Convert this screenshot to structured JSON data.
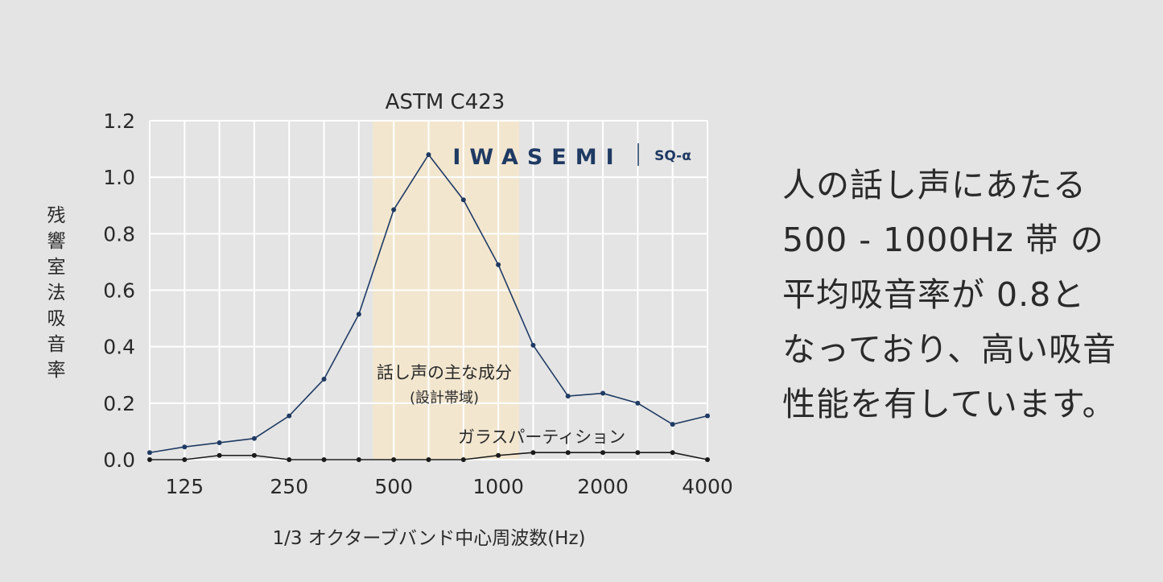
{
  "chart_data": {
    "type": "line",
    "title": "ASTM C423",
    "xlabel": "1/3 オクターブバンド中心周波数(Hz)",
    "ylabel": "残響室法吸音率",
    "ylim": [
      0,
      1.2
    ],
    "y_ticks": [
      "1.2",
      "1.0",
      "0.8",
      "0.6",
      "0.4",
      "0.2",
      "0.0"
    ],
    "x_tick_labels": [
      "125",
      "250",
      "500",
      "1000",
      "2000",
      "4000"
    ],
    "x": [
      "100",
      "125",
      "160",
      "200",
      "250",
      "315",
      "400",
      "500",
      "630",
      "800",
      "1000",
      "1250",
      "1600",
      "2000",
      "2500",
      "3150",
      "4000"
    ],
    "series": [
      {
        "name": "",
        "color": "#1f3a63",
        "values": [
          0.025,
          0.045,
          0.06,
          0.075,
          0.155,
          0.285,
          0.515,
          0.885,
          1.08,
          0.92,
          0.69,
          0.405,
          0.225,
          0.235,
          0.2,
          0.125,
          0.155
        ]
      },
      {
        "name": "ガラスパーティション",
        "color": "#1a1a1a",
        "values": [
          0.0,
          0.0,
          0.015,
          0.015,
          0.0,
          0.0,
          0.0,
          0.0,
          0.0,
          0.0,
          0.015,
          0.025,
          0.025,
          0.025,
          0.025,
          0.025,
          0.0
        ]
      }
    ],
    "band_label_line1": "話し声の主な成分",
    "band_label_line2": "(設計帯域)",
    "band_color": "#f2e6cf",
    "grid": true,
    "logo_text": "IWASEMI",
    "logo_product": "SQ-α"
  },
  "description": [
    "人の話し声にあたる",
    "500 - 1000Hz 帯 の",
    "平均吸音率が 0.8と",
    "なっており、高い吸音",
    "性能を有しています。"
  ]
}
